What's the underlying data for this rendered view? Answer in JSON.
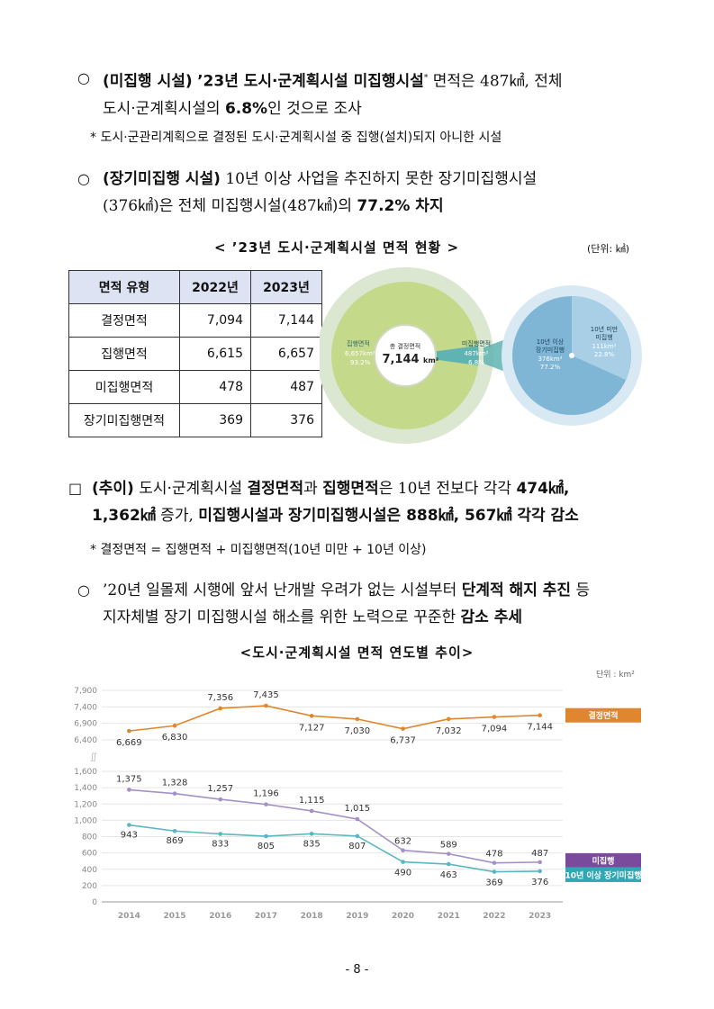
{
  "section1": {
    "p1_lead": "○",
    "p1_label": "(미집행 시설)",
    "p1_bold": "’23년 도시·군계획시설 미집행시설",
    "p1_sup": "*",
    "p1_text1": " 면적은 487㎢, 전체",
    "p1_text2": "도시·군계획시설의 ",
    "p1_pct": "6.8%",
    "p1_text3": "인 것으로 조사",
    "note1": "* 도시·군관리계획으로 결정된 도시·군계획시설 중 집행(설치)되지 아니한 시설",
    "p2_lead": "○",
    "p2_label": "(장기미집행 시설)",
    "p2_text1": " 10년 이상 사업을 추진하지 못한 장기미집행시설",
    "p2_text2": "(376㎢)은 전체 미집행시설(487㎢)의 ",
    "p2_bold": "77.2% 차지"
  },
  "table_caption": "< ’23년 도시·군계획시설 면적 현황 >",
  "unit_label": "(단위: ㎢)",
  "table": {
    "headers": [
      "면적 유형",
      "2022년",
      "2023년"
    ],
    "rows": [
      {
        "label": "결정면적",
        "y2022": "7,094",
        "y2023": "7,144"
      },
      {
        "label": "집행면적",
        "y2022": "6,615",
        "y2023": "6,657"
      },
      {
        "label": "미집행면적",
        "y2022": "478",
        "y2023": "487"
      },
      {
        "label": "장기미집행면적",
        "y2022": "369",
        "y2023": "376"
      }
    ]
  },
  "pie": {
    "executed_label": "집행면적",
    "executed_value": "6,657km²",
    "executed_pct": "93.2%",
    "center_label": "총 결정면적",
    "center_value": "7,144",
    "center_unit": "km²",
    "unexec_label": "미집행면적",
    "unexec_value": "487km²",
    "unexec_pct": "6.8%",
    "long_label1": "10년 이상",
    "long_label2": "장기미집행",
    "long_value": "376km²",
    "long_pct": "77.2%",
    "short_label1": "10년 미만",
    "short_label2": "미집행",
    "short_value": "111km²",
    "short_pct": "22.8%",
    "colors": {
      "outer": "#d9e6cf",
      "executed": "#c5d98a",
      "unexec": "#5fb3b3",
      "long": "#7fb6d6",
      "long_outer": "#d8e9f3",
      "short": "#a8cfe6"
    }
  },
  "section2": {
    "box": "□",
    "lead_label": "(추이)",
    "t1": " 도시·군계획시설 ",
    "b1": "결정면적",
    "t2": "과 ",
    "b2": "집행면적",
    "t3": "은 10년 전보다 각각 ",
    "b3": "474㎢,",
    "b4": "1,362㎢",
    "t4": " 증가, ",
    "b5": "미집행시설과 장기미집행시설은 888㎢, 567㎢ 각각 감소",
    "note2": "* 결정면적 = 집행면적 + 미집행면적(10년 미만 + 10년 이상)",
    "p3_lead": "○",
    "p3_text1": " ’20년 일몰제 시행에 앞서 난개발 우려가 없는 시설부터 ",
    "p3_bold1": "단계적 해지 추진",
    "p3_text2": " 등",
    "p3_text3": "지자체별 장기 미집행시설 해소를 위한 노력으로 꾸준한 ",
    "p3_bold2": "감소 추세"
  },
  "chart_caption": "<도시·군계획시설 면적 연도별 추이>",
  "chart_unit": "단위 : km²",
  "chart_data": {
    "type": "line",
    "title": "도시·군계획시설 면적 연도별 추이",
    "unit": "km²",
    "categories": [
      "2014",
      "2015",
      "2016",
      "2017",
      "2018",
      "2019",
      "2020",
      "2021",
      "2022",
      "2023"
    ],
    "upper_axis_ticks": [
      "7,900",
      "7,400",
      "6,900",
      "6,400"
    ],
    "lower_axis_ticks": [
      "1,600",
      "1,400",
      "1,200",
      "1,000",
      "800",
      "600",
      "400",
      "200",
      "0"
    ],
    "upper_ylim": [
      6400,
      7900
    ],
    "lower_ylim": [
      0,
      1600
    ],
    "series": [
      {
        "name": "결정면적",
        "color": "#e0862e",
        "axis": "upper",
        "values": [
          6669,
          6830,
          7356,
          7435,
          7127,
          7030,
          6737,
          7032,
          7094,
          7144
        ],
        "labels": [
          "6,669",
          "6,830",
          "7,356",
          "7,435",
          "7,127",
          "7,030",
          "6,737",
          "7,032",
          "7,094",
          "7,144"
        ]
      },
      {
        "name": "미집행",
        "color": "#a48fc7",
        "axis": "lower",
        "values": [
          1375,
          1328,
          1257,
          1196,
          1115,
          1015,
          632,
          589,
          478,
          487
        ],
        "labels": [
          "1,375",
          "1,328",
          "1,257",
          "1,196",
          "1,115",
          "1,015",
          "632",
          "589",
          "478",
          "487"
        ]
      },
      {
        "name": "10년 이상 장기미집행",
        "color": "#58b7c3",
        "axis": "lower",
        "values": [
          943,
          869,
          833,
          805,
          835,
          807,
          490,
          463,
          369,
          376
        ],
        "labels": [
          "943",
          "869",
          "833",
          "805",
          "835",
          "807",
          "490",
          "463",
          "369",
          "376"
        ]
      }
    ],
    "legend_colors": [
      "#e0862e",
      "#7a4a9c",
      "#2fa7b5"
    ]
  },
  "page_number": "- 8 -"
}
